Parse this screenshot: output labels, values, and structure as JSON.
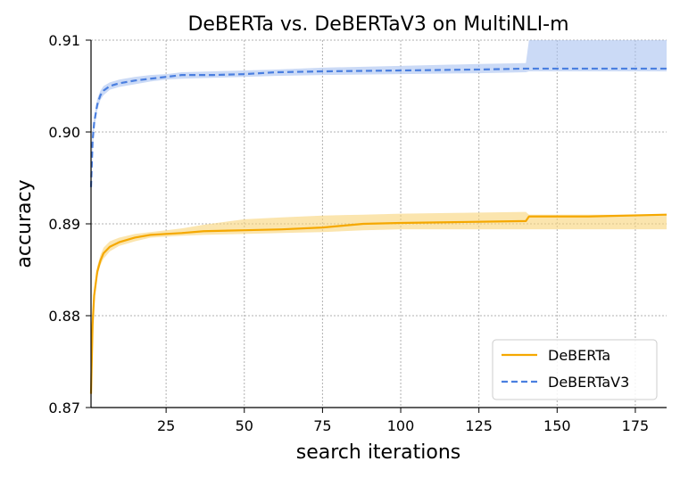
{
  "chart_data": {
    "type": "line",
    "title": "DeBERTa vs. DeBERTaV3 on MultiNLI-m",
    "xlabel": "search iterations",
    "ylabel": "accuracy",
    "xlim": [
      1,
      185
    ],
    "ylim": [
      0.87,
      0.91
    ],
    "xticks": [
      25,
      50,
      75,
      100,
      125,
      150,
      175
    ],
    "xtick_labels": [
      "25",
      "50",
      "75",
      "100",
      "125",
      "150",
      "175"
    ],
    "yticks": [
      0.87,
      0.88,
      0.89,
      0.9,
      0.91
    ],
    "ytick_labels": [
      "0.87",
      "0.88",
      "0.89",
      "0.90",
      "0.91"
    ],
    "grid": true,
    "legend_position": "lower-right",
    "series": [
      {
        "name": "DeBERTa",
        "color": "#f5a800",
        "band_color": "#f9d478",
        "style": "solid",
        "x": [
          1,
          1.5,
          2,
          3,
          4,
          5,
          7,
          10,
          15,
          20,
          25,
          30,
          37,
          50,
          62,
          75,
          88,
          100,
          120,
          140,
          141,
          160,
          185
        ],
        "y": [
          0.8715,
          0.879,
          0.8822,
          0.8848,
          0.886,
          0.8868,
          0.8875,
          0.888,
          0.8885,
          0.8888,
          0.8889,
          0.889,
          0.8892,
          0.8893,
          0.8894,
          0.8896,
          0.89,
          0.8901,
          0.8902,
          0.8903,
          0.8908,
          0.8908,
          0.891
        ],
        "lower": [
          0.8705,
          0.878,
          0.8815,
          0.8842,
          0.8855,
          0.8862,
          0.887,
          0.8876,
          0.8881,
          0.8885,
          0.8886,
          0.8887,
          0.8888,
          0.8889,
          0.889,
          0.8891,
          0.8893,
          0.8894,
          0.8894,
          0.8894,
          0.8894,
          0.8894,
          0.8894
        ],
        "upper": [
          0.8725,
          0.88,
          0.883,
          0.8854,
          0.8866,
          0.8874,
          0.8881,
          0.8885,
          0.8889,
          0.8891,
          0.8893,
          0.8895,
          0.8899,
          0.8905,
          0.8907,
          0.8909,
          0.891,
          0.8911,
          0.8912,
          0.8913,
          0.891,
          0.891,
          0.891
        ]
      },
      {
        "name": "DeBERTaV3",
        "color": "#4a7fe0",
        "band_color": "#a9c2f0",
        "style": "dashed",
        "x": [
          1,
          1.5,
          2,
          3,
          4,
          5,
          7,
          10,
          15,
          20,
          25,
          30,
          40,
          50,
          60,
          75,
          100,
          125,
          140,
          141,
          160,
          185
        ],
        "y": [
          0.894,
          0.899,
          0.901,
          0.903,
          0.904,
          0.9045,
          0.905,
          0.9053,
          0.9056,
          0.9058,
          0.906,
          0.9062,
          0.9062,
          0.9063,
          0.9065,
          0.9066,
          0.9067,
          0.9068,
          0.9069,
          0.9069,
          0.9069,
          0.9069
        ],
        "lower": [
          0.893,
          0.898,
          0.9003,
          0.9024,
          0.9035,
          0.904,
          0.9046,
          0.9049,
          0.9052,
          0.9055,
          0.9057,
          0.9058,
          0.9059,
          0.906,
          0.9061,
          0.9062,
          0.9063,
          0.9064,
          0.9065,
          0.9066,
          0.9066,
          0.9066
        ],
        "upper": [
          0.895,
          0.9,
          0.9017,
          0.9036,
          0.9045,
          0.905,
          0.9054,
          0.9057,
          0.906,
          0.9062,
          0.9063,
          0.9065,
          0.9066,
          0.9067,
          0.9068,
          0.907,
          0.9072,
          0.9074,
          0.9075,
          0.91,
          0.91,
          0.91
        ]
      }
    ]
  }
}
